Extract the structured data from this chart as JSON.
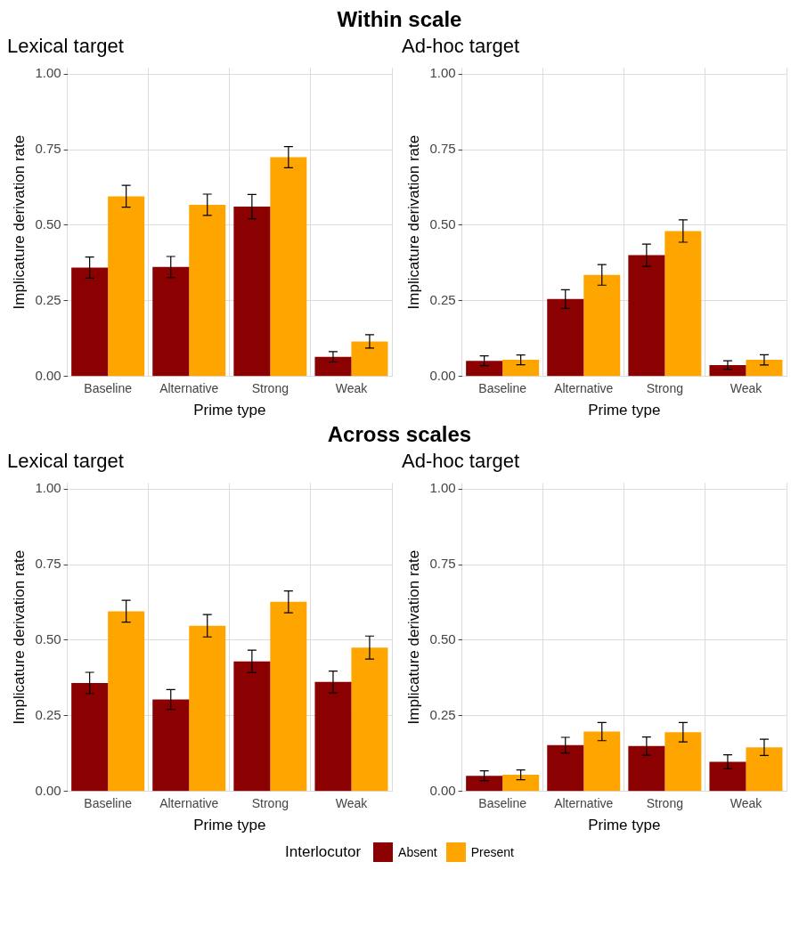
{
  "chart_data": [
    {
      "type": "bar",
      "title": "Lexical target",
      "annotations": [
        "Within scale"
      ],
      "xlabel": "Prime type",
      "ylabel": "Implicature derivation rate",
      "categories": [
        "Baseline",
        "Alternative",
        "Strong",
        "Weak"
      ],
      "series": [
        {
          "color": "#8b0000",
          "values": [
            0.36,
            0.362,
            0.562,
            0.065
          ],
          "errors": [
            0.035,
            0.035,
            0.04,
            0.017
          ]
        },
        {
          "color": "#ffa500",
          "values": [
            0.596,
            0.568,
            0.725,
            0.116
          ],
          "errors": [
            0.036,
            0.035,
            0.035,
            0.022
          ]
        }
      ],
      "ylim": [
        0,
        1.02
      ],
      "yticks": [
        {
          "value": 0,
          "label": "0.00"
        },
        {
          "value": 0.25,
          "label": "0.25"
        },
        {
          "value": 0.5,
          "label": "0.50"
        },
        {
          "value": 0.75,
          "label": "0.75"
        },
        {
          "value": 1,
          "label": "1.00"
        }
      ],
      "grid": true,
      "legend": false
    },
    {
      "type": "bar",
      "title": "Ad-hoc target",
      "xlabel": "Prime type",
      "ylabel": "Implicature derivation rate",
      "categories": [
        "Baseline",
        "Alternative",
        "Strong",
        "Weak"
      ],
      "series": [
        {
          "color": "#8b0000",
          "values": [
            0.052,
            0.256,
            0.401,
            0.038
          ],
          "errors": [
            0.016,
            0.031,
            0.037,
            0.014
          ]
        },
        {
          "color": "#ffa500",
          "values": [
            0.055,
            0.336,
            0.481,
            0.055
          ],
          "errors": [
            0.016,
            0.034,
            0.037,
            0.017
          ]
        }
      ],
      "ylim": [
        0,
        1.02
      ],
      "yticks": [
        {
          "value": 0,
          "label": "0.00"
        },
        {
          "value": 0.25,
          "label": "0.25"
        },
        {
          "value": 0.5,
          "label": "0.50"
        },
        {
          "value": 0.75,
          "label": "0.75"
        },
        {
          "value": 1,
          "label": "1.00"
        }
      ],
      "grid": true,
      "legend": false
    },
    {
      "type": "bar",
      "title": "Lexical target",
      "annotations": [
        "Across scales"
      ],
      "xlabel": "Prime type",
      "ylabel": "Implicature derivation rate",
      "categories": [
        "Baseline",
        "Alternative",
        "Strong",
        "Weak"
      ],
      "series": [
        {
          "color": "#8b0000",
          "values": [
            0.359,
            0.304,
            0.43,
            0.362
          ],
          "errors": [
            0.035,
            0.033,
            0.037,
            0.036
          ]
        },
        {
          "color": "#ffa500",
          "values": [
            0.596,
            0.548,
            0.627,
            0.476
          ],
          "errors": [
            0.036,
            0.037,
            0.036,
            0.038
          ]
        }
      ],
      "ylim": [
        0,
        1.02
      ],
      "yticks": [
        {
          "value": 0,
          "label": "0.00"
        },
        {
          "value": 0.25,
          "label": "0.25"
        },
        {
          "value": 0.5,
          "label": "0.50"
        },
        {
          "value": 0.75,
          "label": "0.75"
        },
        {
          "value": 1,
          "label": "1.00"
        }
      ],
      "grid": true,
      "legend": false
    },
    {
      "type": "bar",
      "title": "Ad-hoc target",
      "xlabel": "Prime type",
      "ylabel": "Implicature derivation rate",
      "categories": [
        "Baseline",
        "Alternative",
        "Strong",
        "Weak"
      ],
      "series": [
        {
          "name": "Absent",
          "color": "#8b0000",
          "values": [
            0.052,
            0.153,
            0.15,
            0.098
          ],
          "errors": [
            0.016,
            0.026,
            0.03,
            0.023
          ]
        },
        {
          "name": "Present",
          "color": "#ffa500",
          "values": [
            0.055,
            0.198,
            0.196,
            0.146
          ],
          "errors": [
            0.016,
            0.03,
            0.032,
            0.027
          ]
        }
      ],
      "ylim": [
        0,
        1.02
      ],
      "yticks": [
        {
          "value": 0,
          "label": "0.00"
        },
        {
          "value": 0.25,
          "label": "0.25"
        },
        {
          "value": 0.5,
          "label": "0.50"
        },
        {
          "value": 0.75,
          "label": "0.75"
        },
        {
          "value": 1,
          "label": "1.00"
        }
      ],
      "grid": true,
      "legend": "bottom",
      "legend_title": "Interlocutor"
    }
  ]
}
